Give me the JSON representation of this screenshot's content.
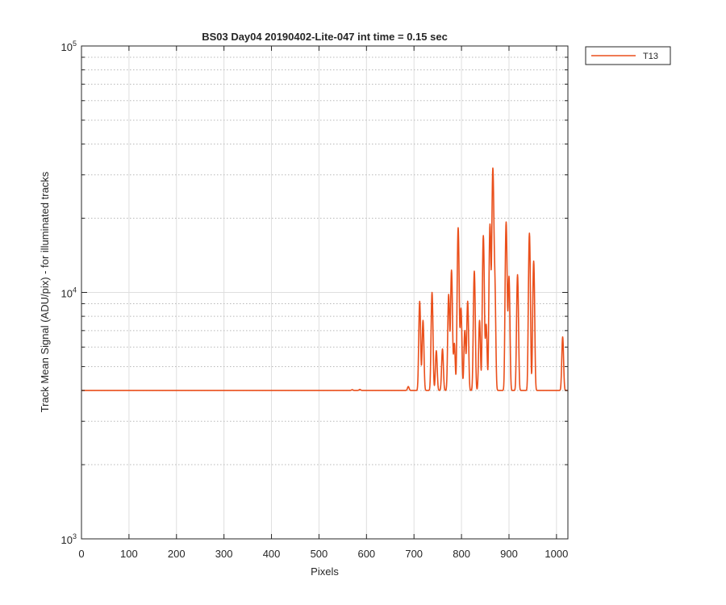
{
  "chart_data": {
    "type": "line",
    "title": "BS03 Day04 20190402-Lite-047 int time = 0.15 sec",
    "xlabel": "Pixels",
    "ylabel": "Track Mean Signal (ADU/pix) - for illuminated tracks",
    "xlim": [
      0,
      1024
    ],
    "ylim": [
      1000,
      100000
    ],
    "yscale": "log",
    "grid": true,
    "legend_position": "outside-top-right",
    "x_ticks": [
      0,
      100,
      200,
      300,
      400,
      500,
      600,
      700,
      800,
      900,
      1000
    ],
    "x_tick_labels": [
      "0",
      "100",
      "200",
      "300",
      "400",
      "500",
      "600",
      "700",
      "800",
      "900",
      "1000"
    ],
    "y_ticks": [
      1000,
      10000,
      100000
    ],
    "y_tick_labels": [
      {
        "base": "10",
        "exp": "3"
      },
      {
        "base": "10",
        "exp": "4"
      },
      {
        "base": "10",
        "exp": "5"
      }
    ],
    "series": [
      {
        "name": "T13",
        "color": "#ea4f1b",
        "baseline": 4000,
        "peaks": [
          {
            "x": 570,
            "y": 4030
          },
          {
            "x": 586,
            "y": 4040
          },
          {
            "x": 688,
            "y": 4150
          },
          {
            "x": 712,
            "y": 9200
          },
          {
            "x": 719,
            "y": 7700
          },
          {
            "x": 738,
            "y": 10000
          },
          {
            "x": 747,
            "y": 5800
          },
          {
            "x": 760,
            "y": 5900
          },
          {
            "x": 773,
            "y": 9800
          },
          {
            "x": 779,
            "y": 12300
          },
          {
            "x": 785,
            "y": 6200
          },
          {
            "x": 793,
            "y": 18300
          },
          {
            "x": 799,
            "y": 8600
          },
          {
            "x": 807,
            "y": 7000
          },
          {
            "x": 813,
            "y": 9200
          },
          {
            "x": 827,
            "y": 12200
          },
          {
            "x": 838,
            "y": 7700
          },
          {
            "x": 846,
            "y": 17000
          },
          {
            "x": 852,
            "y": 7400
          },
          {
            "x": 860,
            "y": 18900
          },
          {
            "x": 866,
            "y": 31500
          },
          {
            "x": 870,
            "y": 11000
          },
          {
            "x": 894,
            "y": 19300
          },
          {
            "x": 900,
            "y": 11600
          },
          {
            "x": 918,
            "y": 11800
          },
          {
            "x": 943,
            "y": 17400
          },
          {
            "x": 952,
            "y": 13400
          },
          {
            "x": 1013,
            "y": 6600
          }
        ]
      }
    ]
  }
}
